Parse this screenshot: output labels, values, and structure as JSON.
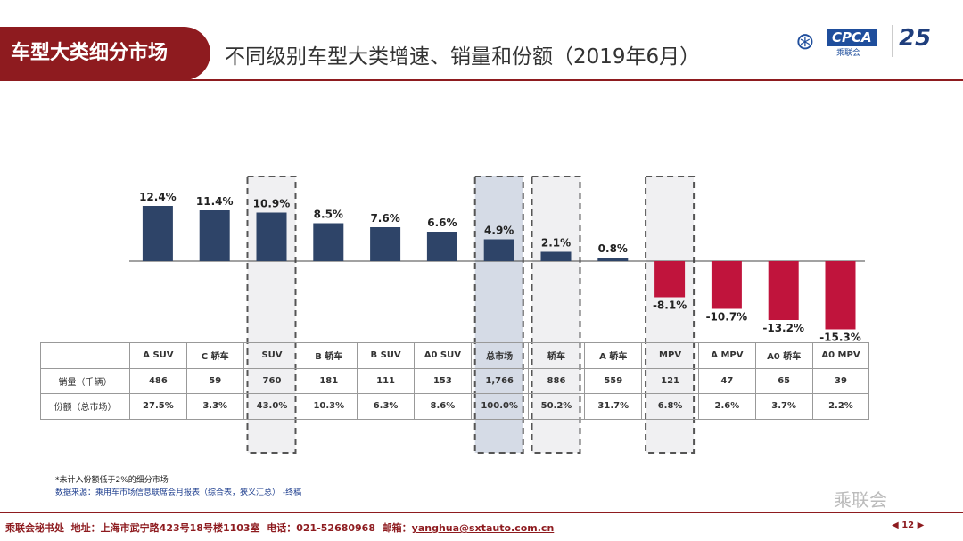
{
  "header": {
    "section_tab": "车型大类细分市场",
    "title": "不同级别车型大类增速、销量和份额（2019年6月）",
    "logo_text": "CPCA",
    "logo_cn": "乘联会",
    "logo_25": "25"
  },
  "chart_data": {
    "type": "bar",
    "categories": [
      "A SUV",
      "C 轿车",
      "SUV",
      "B 轿车",
      "B SUV",
      "A0 SUV",
      "总市场",
      "轿车",
      "A 轿车",
      "MPV",
      "A MPV",
      "A0 轿车",
      "A0 MPV"
    ],
    "values": [
      12.4,
      11.4,
      10.9,
      8.5,
      7.6,
      6.6,
      4.9,
      2.1,
      0.8,
      -8.1,
      -10.7,
      -13.2,
      -15.3
    ],
    "value_labels": [
      "12.4%",
      "11.4%",
      "10.9%",
      "8.5%",
      "7.6%",
      "6.6%",
      "4.9%",
      "2.1%",
      "0.8%",
      "-8.1%",
      "-10.7%",
      "-13.2%",
      "-15.3%"
    ],
    "highlighted": [
      "SUV",
      "总市场",
      "轿车",
      "MPV"
    ],
    "colors": {
      "positive": "#2e4468",
      "negative": "#c0143c",
      "highlight_fill": "#f0f0f2",
      "total_fill": "#d5dbe6"
    },
    "table": {
      "rows": [
        {
          "label": "销量（千辆）",
          "values": [
            "486",
            "59",
            "760",
            "181",
            "111",
            "153",
            "1,766",
            "886",
            "559",
            "121",
            "47",
            "65",
            "39"
          ]
        },
        {
          "label": "份额（总市场）",
          "values": [
            "27.5%",
            "3.3%",
            "43.0%",
            "10.3%",
            "6.3%",
            "8.6%",
            "100.0%",
            "50.2%",
            "31.7%",
            "6.8%",
            "2.6%",
            "3.7%",
            "2.2%"
          ]
        }
      ]
    }
  },
  "notes": {
    "note": "*未计入份额低于2%的细分市场",
    "source": "数据来源：乘用车市场信息联席会月报表（综合表，狭义汇总） -终稿",
    "watermark": "乘联会"
  },
  "footer": {
    "org": "乘联会秘书处",
    "address": "地址：上海市武宁路423号18号楼1103室",
    "phone": "电话：021-52680968",
    "email_label": "邮箱：",
    "email": "yanghua@sxtauto.com.cn",
    "page": "12"
  }
}
